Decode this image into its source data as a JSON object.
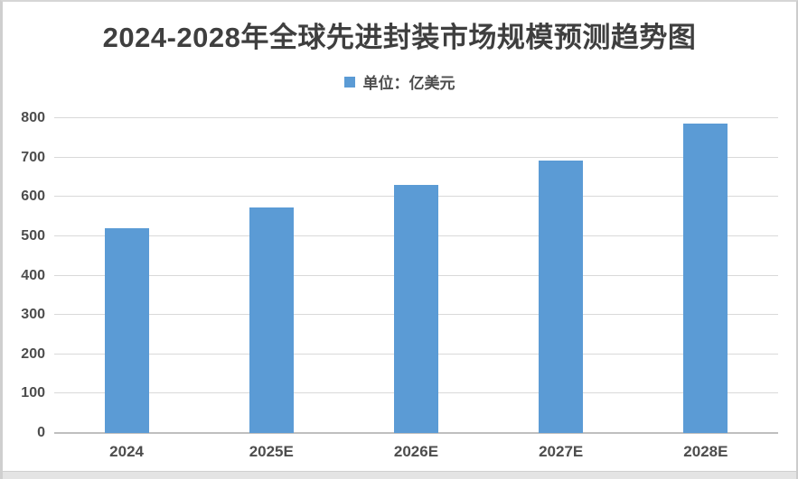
{
  "chart_data": {
    "type": "bar",
    "title": "2024-2028年全球先进封装市场规模预测趋势图",
    "legend": {
      "label": "单位：亿美元",
      "position": "top"
    },
    "categories": [
      "2024",
      "2025E",
      "2026E",
      "2027E",
      "2028E"
    ],
    "values": [
      520,
      573,
      630,
      692,
      787
    ],
    "unit": "亿美元",
    "xlabel": "",
    "ylabel": "",
    "ylim": [
      0,
      800
    ],
    "ytick_step": 100,
    "yticks": [
      "0",
      "100",
      "200",
      "300",
      "400",
      "500",
      "600",
      "700",
      "800"
    ],
    "grid": true,
    "colors": {
      "bar": "#5B9BD5",
      "gridline": "#D9D9D9",
      "axis_line": "#BFBFBF",
      "title_text": "#3F3F3F",
      "tick_text": "#4D4D4D",
      "background": "#FFFFFF"
    }
  }
}
